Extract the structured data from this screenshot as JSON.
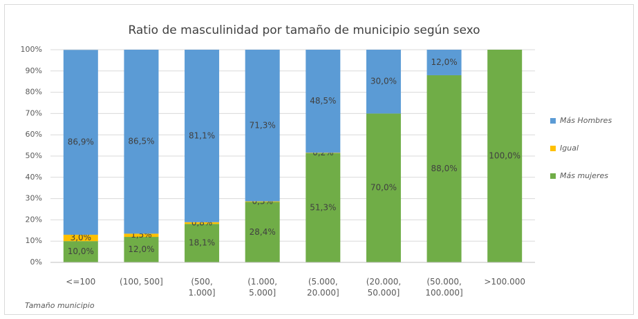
{
  "chart_data": {
    "type": "stacked_bar",
    "title": "Ratio de masculinidad por tamaño de municipio según sexo",
    "x_label": "Tamaño municipio",
    "categories": [
      "<=100",
      "(100, 500]",
      "(500, 1.000]",
      "(1.000, 5.000]",
      "(5.000, 20.000]",
      "(20.000, 50.000]",
      "(50.000, 100.000]",
      ">100.000"
    ],
    "series": [
      {
        "name": "Más mujeres",
        "color": "#70ad47",
        "values": [
          10.0,
          12.0,
          18.1,
          28.4,
          51.3,
          70.0,
          88.0,
          100.0
        ],
        "value_labels": [
          "10,0%",
          "12,0%",
          "18,1%",
          "28,4%",
          "51,3%",
          "70,0%",
          "88,0%",
          "100,0%"
        ]
      },
      {
        "name": "Igual",
        "color": "#ffc000",
        "values": [
          3.0,
          1.5,
          0.8,
          0.3,
          0.2,
          0,
          0,
          0
        ],
        "value_labels": [
          "3,0%",
          "1,5%",
          "0,8%",
          "0,3%",
          "0,2%",
          null,
          null,
          null
        ]
      },
      {
        "name": "Más Hombres",
        "color": "#5b9bd5",
        "values": [
          86.9,
          86.5,
          81.1,
          71.3,
          48.5,
          30.0,
          12.0,
          0
        ],
        "value_labels": [
          "86,9%",
          "86,5%",
          "81,1%",
          "71,3%",
          "48,5%",
          "30,0%",
          "12,0%",
          null
        ]
      }
    ],
    "ylim": [
      0,
      100
    ],
    "yticks": [
      {
        "value": 0,
        "label": "0%"
      },
      {
        "value": 10,
        "label": "10%"
      },
      {
        "value": 20,
        "label": "20%"
      },
      {
        "value": 30,
        "label": "30%"
      },
      {
        "value": 40,
        "label": "40%"
      },
      {
        "value": 50,
        "label": "50%"
      },
      {
        "value": 60,
        "label": "60%"
      },
      {
        "value": 70,
        "label": "70%"
      },
      {
        "value": 80,
        "label": "80%"
      },
      {
        "value": 90,
        "label": "90%"
      },
      {
        "value": 100,
        "label": "100%"
      }
    ],
    "grid": true,
    "legend": "right"
  }
}
